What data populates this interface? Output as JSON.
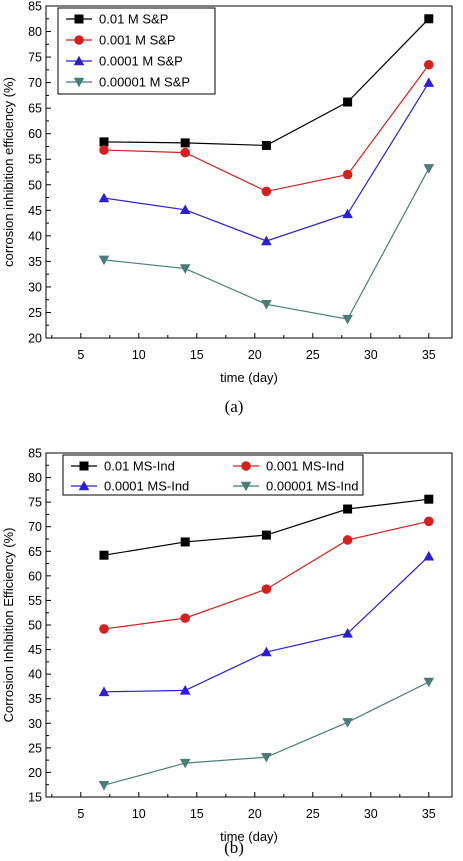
{
  "chart_data": [
    {
      "type": "line",
      "caption": "(a)",
      "xlabel": "time (day)",
      "ylabel": "corrosion inhibition efficiency (%)",
      "xlim": [
        2,
        37
      ],
      "ylim": [
        20,
        85
      ],
      "xticks": [
        5,
        10,
        15,
        20,
        25,
        30,
        35
      ],
      "yticks": [
        20,
        25,
        30,
        35,
        40,
        45,
        50,
        55,
        60,
        65,
        70,
        75,
        80,
        85
      ],
      "legend_position": "top-left",
      "legend_layout": "vertical",
      "x": [
        7,
        14,
        21,
        28,
        35
      ],
      "series": [
        {
          "name": "0.01 M S&P",
          "color": "#000000",
          "marker": "square",
          "values": [
            58.4,
            58.2,
            57.7,
            66.2,
            82.5
          ]
        },
        {
          "name": "0.001 M S&P",
          "color": "#d62020",
          "marker": "circle",
          "values": [
            56.8,
            56.3,
            48.7,
            52.0,
            73.5
          ]
        },
        {
          "name": "0.0001 M S&P",
          "color": "#2a1fd6",
          "marker": "triangle-up",
          "values": [
            47.4,
            45.1,
            39.0,
            44.3,
            70.0
          ]
        },
        {
          "name": "0.00001 M S&P",
          "color": "#4a7c78",
          "marker": "triangle-down",
          "values": [
            35.3,
            33.6,
            26.6,
            23.7,
            53.2
          ]
        }
      ]
    },
    {
      "type": "line",
      "caption": "(b)",
      "xlabel": "time (day)",
      "ylabel": "Corrosion Inhibition Efficiency (%)",
      "xlim": [
        2,
        37
      ],
      "ylim": [
        15,
        85
      ],
      "xticks": [
        5,
        10,
        15,
        20,
        25,
        30,
        35
      ],
      "yticks": [
        15,
        20,
        25,
        30,
        35,
        40,
        45,
        50,
        55,
        60,
        65,
        70,
        75,
        80,
        85
      ],
      "legend_position": "top",
      "legend_layout": "two-column",
      "x": [
        7,
        14,
        21,
        28,
        35
      ],
      "series": [
        {
          "name": "0.01 MS-Ind",
          "color": "#000000",
          "marker": "square",
          "values": [
            64.2,
            66.9,
            68.3,
            73.6,
            75.6
          ]
        },
        {
          "name": "0.001 MS-Ind",
          "color": "#d62020",
          "marker": "circle",
          "values": [
            49.2,
            51.4,
            57.3,
            67.3,
            71.1
          ]
        },
        {
          "name": "0.0001 MS-Ind",
          "color": "#2a1fd6",
          "marker": "triangle-up",
          "values": [
            36.4,
            36.7,
            44.5,
            48.3,
            64.0
          ]
        },
        {
          "name": "0.00001 MS-Ind",
          "color": "#4a7c78",
          "marker": "triangle-down",
          "values": [
            17.4,
            21.9,
            23.1,
            30.2,
            38.4
          ]
        }
      ]
    }
  ]
}
